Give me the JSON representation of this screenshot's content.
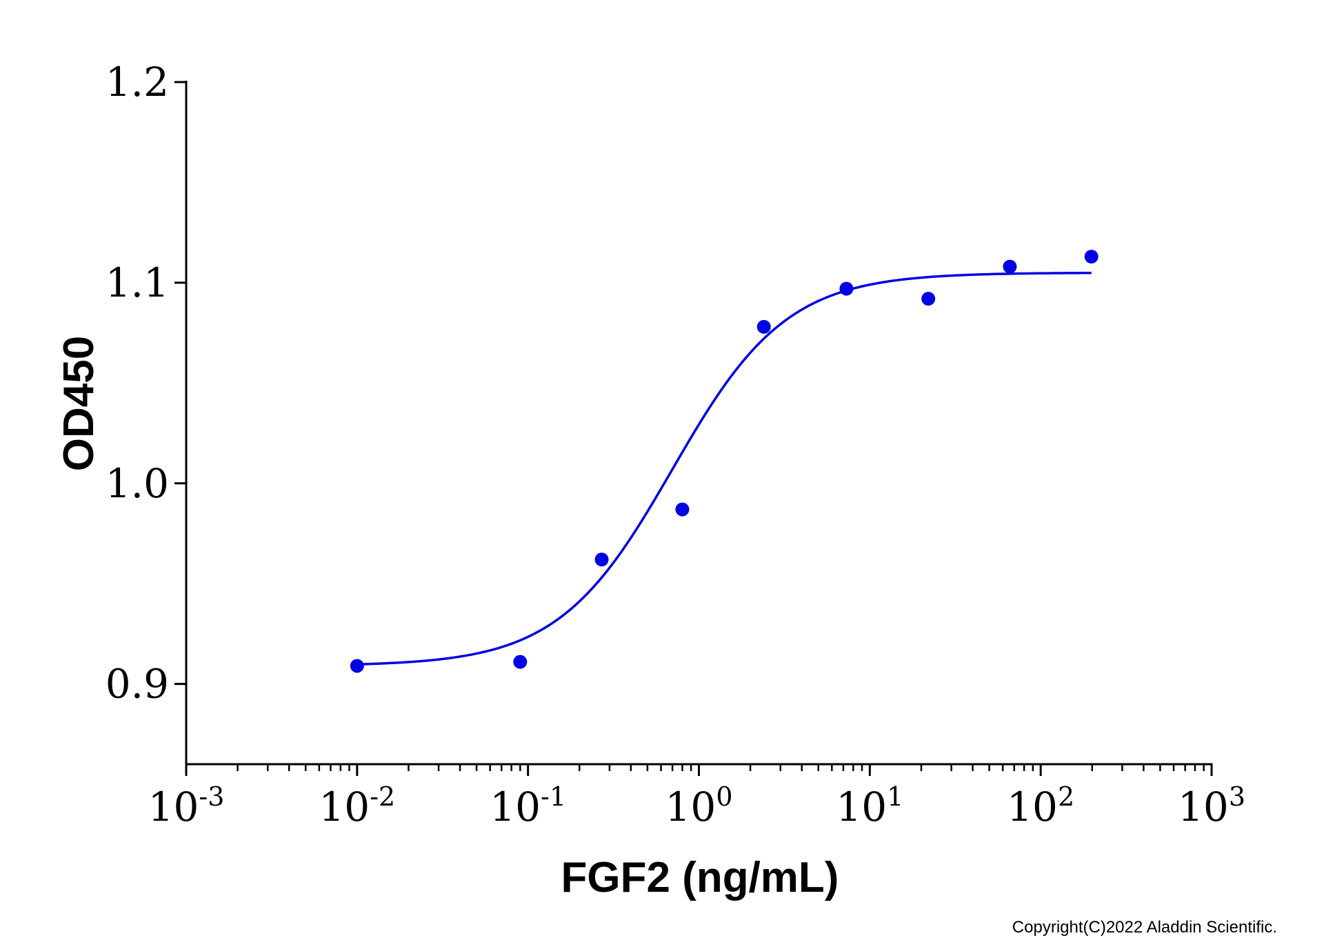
{
  "chart_data": {
    "type": "scatter",
    "title": "",
    "xlabel": "FGF2 (ng/mL)",
    "ylabel": "OD450",
    "x_scale": "log",
    "xlim": [
      0.001,
      1000
    ],
    "ylim": [
      0.86,
      1.2
    ],
    "x_ticks": [
      {
        "base": "10",
        "exp": "-3",
        "value": 0.001
      },
      {
        "base": "10",
        "exp": "-2",
        "value": 0.01
      },
      {
        "base": "10",
        "exp": "-1",
        "value": 0.1
      },
      {
        "base": "10",
        "exp": "0",
        "value": 1
      },
      {
        "base": "10",
        "exp": "1",
        "value": 10
      },
      {
        "base": "10",
        "exp": "2",
        "value": 100
      },
      {
        "base": "10",
        "exp": "3",
        "value": 1000
      }
    ],
    "y_ticks": [
      {
        "label": "0.9",
        "value": 0.9
      },
      {
        "label": "1.0",
        "value": 1.0
      },
      {
        "label": "1.1",
        "value": 1.1
      },
      {
        "label": "1.2",
        "value": 1.2
      }
    ],
    "grid": false,
    "color": "#0000e6",
    "series": [
      {
        "values_x": [
          0.01,
          0.09,
          0.27,
          0.8,
          2.4,
          7.3,
          22,
          66,
          198
        ],
        "values_y": [
          0.909,
          0.911,
          0.962,
          0.987,
          1.078,
          1.097,
          1.092,
          1.108,
          1.113
        ]
      }
    ],
    "fit": {
      "type": "4PL",
      "bottom": 0.909,
      "top": 1.105,
      "ec50": 0.7,
      "hill": 1.3,
      "x_range": [
        0.01,
        198
      ]
    }
  },
  "copyright": "Copyright(C)2022 Aladdin Scientific."
}
